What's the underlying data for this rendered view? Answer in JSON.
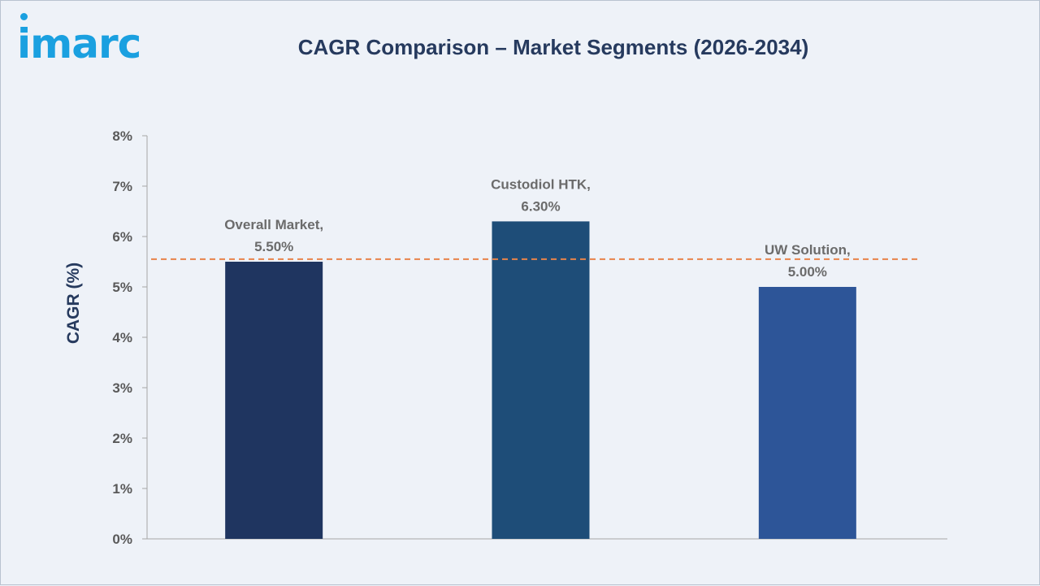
{
  "logo": {
    "text": "imarc"
  },
  "title": "CAGR Comparison – Market Segments (2026-2034)",
  "colors": {
    "background": "#eef2f8",
    "title": "#263a5e",
    "logo": "#1aa0e0",
    "reference_line": "#e8834a",
    "bars": [
      "#1f3560",
      "#1e4d78",
      "#2d5598"
    ]
  },
  "chart_data": {
    "type": "bar",
    "title": "CAGR Comparison – Market Segments (2026-2034)",
    "xlabel": "",
    "ylabel": "CAGR (%)",
    "categories": [
      "Overall Market",
      "Custodiol HTK",
      "UW Solution"
    ],
    "values": [
      5.5,
      6.3,
      5.0
    ],
    "data_labels": [
      [
        "Overall Market,",
        "5.50%"
      ],
      [
        "Custodiol HTK,",
        "6.30%"
      ],
      [
        "UW Solution,",
        "5.00%"
      ]
    ],
    "ylim": [
      0,
      8
    ],
    "yticks": [
      0,
      1,
      2,
      3,
      4,
      5,
      6,
      7,
      8
    ],
    "ytick_labels": [
      "0%",
      "1%",
      "2%",
      "3%",
      "4%",
      "5%",
      "6%",
      "7%",
      "8%"
    ],
    "reference_line": {
      "value": 5.55,
      "style": "dashed"
    },
    "grid": false,
    "legend": "none"
  }
}
